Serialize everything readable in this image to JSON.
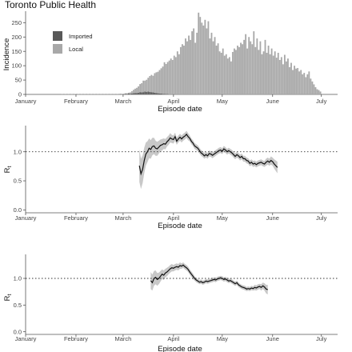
{
  "colors": {
    "imported": "#595959",
    "local": "#a8a8a8",
    "line": "#111111",
    "band": "#c8c8c8",
    "axis": "#555555",
    "refline": "#333333"
  },
  "chart_data": [
    {
      "type": "bar",
      "stacked": true,
      "title": "Toronto Public Health",
      "xlabel": "Episode date",
      "ylabel": "Incidence",
      "x_ticks": [
        "January",
        "February",
        "March",
        "April",
        "May",
        "June",
        "July"
      ],
      "y_ticks": [
        0,
        50,
        100,
        150,
        200,
        250
      ],
      "xlim_days": [
        0,
        192
      ],
      "ylim": [
        0,
        290
      ],
      "legend": {
        "position": "top-left",
        "entries": [
          "Imported",
          "Local"
        ]
      },
      "series": [
        {
          "name": "Imported",
          "start_day": 58,
          "values": [
            1,
            0,
            1,
            2,
            1,
            3,
            2,
            3,
            4,
            5,
            5,
            6,
            8,
            7,
            8,
            10,
            9,
            10,
            9,
            8,
            7,
            6,
            5,
            4,
            3,
            3,
            2,
            2,
            1,
            1
          ]
        },
        {
          "name": "Local",
          "start_day": 58,
          "values": [
            1,
            0,
            1,
            2,
            3,
            3,
            5,
            8,
            12,
            15,
            18,
            22,
            28,
            32,
            40,
            38,
            42,
            48,
            55,
            60,
            58,
            68,
            72,
            75,
            82,
            88,
            95,
            110,
            105,
            112,
            118,
            125,
            120,
            135,
            130,
            150,
            140,
            165,
            175,
            170,
            195,
            185,
            205,
            190,
            220,
            230,
            180,
            215,
            285,
            270,
            250,
            240,
            260,
            230,
            255,
            195,
            215,
            185,
            200,
            170,
            178,
            150,
            145,
            160,
            135,
            140,
            125,
            130,
            115,
            148,
            160,
            155,
            170,
            165,
            180,
            175,
            190,
            210,
            160,
            200,
            185,
            175,
            220,
            165,
            195,
            155,
            185,
            140,
            150,
            190,
            145,
            170,
            140,
            160,
            135,
            150,
            128,
            145,
            120,
            130,
            105,
            138,
            115,
            125,
            95,
            110,
            85,
            100,
            90,
            92,
            80,
            85,
            70,
            75,
            60,
            70,
            80,
            55,
            45,
            35,
            25,
            18,
            15,
            10
          ]
        }
      ],
      "background_noise": {
        "start_day": 22,
        "end_day": 57,
        "approx_value": 1
      }
    },
    {
      "type": "line",
      "title": "",
      "xlabel": "Episode date",
      "ylabel": "R_t",
      "x_ticks": [
        "January",
        "February",
        "March",
        "April",
        "May",
        "June",
        "July"
      ],
      "y_ticks": [
        "0.0",
        "0.5",
        "1.0"
      ],
      "xlim_days": [
        0,
        192
      ],
      "ylim": [
        -0.05,
        1.45
      ],
      "reference_line": 1.0,
      "x_start_day": 70,
      "series": [
        {
          "name": "",
          "values": [
            0.76,
            0.62,
            0.7,
            0.85,
            0.96,
            1.0,
            1.06,
            1.04,
            1.09,
            1.1,
            1.06,
            1.05,
            1.08,
            1.11,
            1.12,
            1.14,
            1.13,
            1.17,
            1.2,
            1.24,
            1.22,
            1.21,
            1.26,
            1.18,
            1.22,
            1.25,
            1.22,
            1.25,
            1.27,
            1.3,
            1.26,
            1.23,
            1.18,
            1.15,
            1.1,
            1.08,
            1.06,
            1.02,
            0.98,
            0.96,
            0.93,
            0.95,
            0.93,
            0.97,
            0.96,
            0.94,
            0.96,
            0.98,
            1.0,
            1.02,
            1.03,
            1.01,
            1.05,
            1.03,
            1.0,
            1.02,
            1.0,
            0.98,
            0.95,
            0.92,
            0.95,
            0.93,
            0.9,
            0.92,
            0.88,
            0.88,
            0.85,
            0.84,
            0.8,
            0.82,
            0.79,
            0.8,
            0.78,
            0.8,
            0.81,
            0.82,
            0.8,
            0.79,
            0.82,
            0.84,
            0.82,
            0.85,
            0.83,
            0.79,
            0.76,
            0.73
          ]
        }
      ],
      "band_halfwidth": [
        0.28,
        0.26,
        0.24,
        0.22,
        0.2,
        0.18,
        0.17,
        0.16,
        0.15,
        0.14,
        0.13,
        0.12,
        0.11,
        0.1,
        0.1,
        0.09,
        0.09,
        0.08,
        0.08,
        0.08,
        0.07,
        0.07,
        0.07,
        0.06,
        0.06,
        0.06,
        0.06,
        0.06,
        0.06,
        0.06,
        0.06,
        0.05,
        0.05,
        0.05,
        0.05,
        0.05,
        0.05,
        0.05,
        0.05,
        0.05,
        0.05,
        0.05,
        0.05,
        0.05,
        0.05,
        0.05,
        0.05,
        0.05,
        0.05,
        0.05,
        0.05,
        0.05,
        0.05,
        0.05,
        0.05,
        0.05,
        0.05,
        0.05,
        0.05,
        0.05,
        0.05,
        0.05,
        0.05,
        0.05,
        0.05,
        0.05,
        0.05,
        0.05,
        0.05,
        0.05,
        0.05,
        0.05,
        0.05,
        0.05,
        0.05,
        0.05,
        0.05,
        0.05,
        0.06,
        0.06,
        0.06,
        0.07,
        0.07,
        0.08,
        0.09,
        0.1
      ]
    },
    {
      "type": "line",
      "title": "",
      "xlabel": "Episode date",
      "ylabel": "R_t",
      "x_ticks": [
        "January",
        "February",
        "March",
        "April",
        "May",
        "June",
        "July"
      ],
      "y_ticks": [
        "0.0",
        "0.5",
        "1.0"
      ],
      "xlim_days": [
        0,
        192
      ],
      "ylim": [
        -0.05,
        1.45
      ],
      "reference_line": 1.0,
      "x_start_day": 77,
      "series": [
        {
          "name": "",
          "values": [
            0.96,
            0.92,
            1.0,
            1.02,
            0.98,
            1.0,
            1.04,
            1.08,
            1.06,
            1.1,
            1.12,
            1.15,
            1.18,
            1.2,
            1.19,
            1.21,
            1.22,
            1.21,
            1.24,
            1.23,
            1.25,
            1.22,
            1.2,
            1.17,
            1.12,
            1.08,
            1.04,
            1.0,
            0.97,
            0.95,
            0.93,
            0.94,
            0.92,
            0.93,
            0.95,
            0.94,
            0.95,
            0.96,
            0.97,
            0.98,
            0.97,
            0.99,
            1.0,
            1.01,
            1.0,
            0.98,
            0.99,
            0.97,
            0.95,
            0.96,
            0.94,
            0.92,
            0.9,
            0.92,
            0.88,
            0.86,
            0.84,
            0.83,
            0.82,
            0.8,
            0.81,
            0.8,
            0.82,
            0.81,
            0.83,
            0.82,
            0.84,
            0.85,
            0.83,
            0.86,
            0.84,
            0.8,
            0.79
          ]
        }
      ],
      "band_halfwidth": [
        0.16,
        0.15,
        0.14,
        0.13,
        0.12,
        0.11,
        0.1,
        0.09,
        0.09,
        0.08,
        0.08,
        0.07,
        0.07,
        0.07,
        0.06,
        0.06,
        0.06,
        0.06,
        0.06,
        0.05,
        0.05,
        0.05,
        0.05,
        0.05,
        0.05,
        0.05,
        0.05,
        0.04,
        0.04,
        0.04,
        0.04,
        0.04,
        0.04,
        0.04,
        0.04,
        0.04,
        0.04,
        0.04,
        0.04,
        0.04,
        0.04,
        0.04,
        0.04,
        0.04,
        0.04,
        0.04,
        0.04,
        0.04,
        0.04,
        0.04,
        0.04,
        0.04,
        0.04,
        0.04,
        0.04,
        0.04,
        0.04,
        0.04,
        0.04,
        0.04,
        0.04,
        0.04,
        0.04,
        0.04,
        0.05,
        0.05,
        0.05,
        0.05,
        0.06,
        0.06,
        0.07,
        0.08,
        0.09
      ]
    }
  ]
}
